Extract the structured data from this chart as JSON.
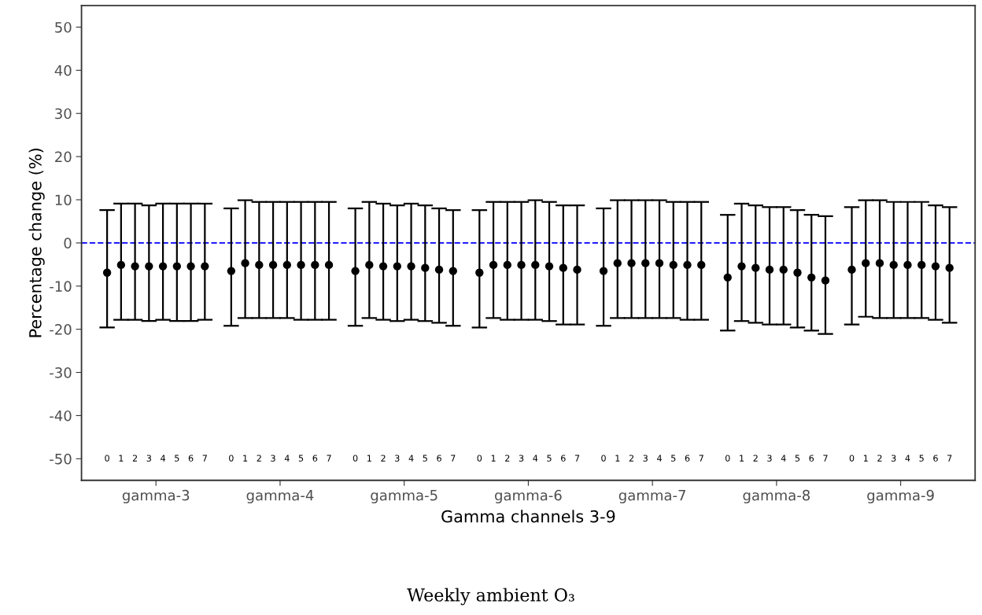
{
  "chart_data": {
    "type": "scatter",
    "xlabel": "Gamma channels 3-9",
    "ylabel": "Percentage change (%)",
    "categories": [
      "gamma-3",
      "gamma-4",
      "gamma-5",
      "gamma-6",
      "gamma-7",
      "gamma-8",
      "gamma-9"
    ],
    "ylim": [
      -55,
      55
    ],
    "yticks": [
      -50,
      -40,
      -30,
      -20,
      -10,
      0,
      10,
      20,
      30,
      40,
      50
    ],
    "grid": false,
    "legend": false,
    "marker": "circle",
    "series": [
      {
        "color": "#000000",
        "values": [
          -6.9,
          -6.5,
          -6.5,
          -6.9,
          -6.5,
          -8.0,
          -6.2
        ],
        "errors": [
          [
            -19.6,
            7.6
          ],
          [
            -19.2,
            8.0
          ],
          [
            -19.2,
            8.0
          ],
          [
            -19.6,
            7.6
          ],
          [
            -19.2,
            8.0
          ],
          [
            -20.3,
            6.5
          ],
          [
            -18.9,
            8.3
          ]
        ]
      },
      {
        "color": "#000000",
        "values": [
          -5.1,
          -4.7,
          -5.1,
          -5.1,
          -4.7,
          -5.4,
          -4.7
        ],
        "errors": [
          [
            -17.8,
            9.1
          ],
          [
            -17.4,
            9.9
          ],
          [
            -17.4,
            9.5
          ],
          [
            -17.4,
            9.5
          ],
          [
            -17.4,
            9.9
          ],
          [
            -18.1,
            9.1
          ],
          [
            -17.1,
            9.9
          ]
        ]
      },
      {
        "color": "#000000",
        "values": [
          -5.4,
          -5.1,
          -5.4,
          -5.1,
          -4.7,
          -5.8,
          -4.7
        ],
        "errors": [
          [
            -17.8,
            9.1
          ],
          [
            -17.4,
            9.5
          ],
          [
            -17.8,
            9.1
          ],
          [
            -17.8,
            9.5
          ],
          [
            -17.4,
            9.9
          ],
          [
            -18.5,
            8.7
          ],
          [
            -17.4,
            9.9
          ]
        ]
      },
      {
        "color": "#000000",
        "values": [
          -5.4,
          -5.1,
          -5.4,
          -5.1,
          -4.7,
          -6.2,
          -5.1
        ],
        "errors": [
          [
            -18.1,
            8.7
          ],
          [
            -17.4,
            9.5
          ],
          [
            -18.1,
            8.7
          ],
          [
            -17.8,
            9.5
          ],
          [
            -17.4,
            9.9
          ],
          [
            -18.9,
            8.3
          ],
          [
            -17.4,
            9.5
          ]
        ]
      },
      {
        "color": "#000000",
        "values": [
          -5.4,
          -5.1,
          -5.4,
          -5.1,
          -4.7,
          -6.2,
          -5.1
        ],
        "errors": [
          [
            -17.8,
            9.1
          ],
          [
            -17.4,
            9.5
          ],
          [
            -17.8,
            9.1
          ],
          [
            -17.8,
            9.9
          ],
          [
            -17.4,
            9.9
          ],
          [
            -18.9,
            8.3
          ],
          [
            -17.4,
            9.5
          ]
        ]
      },
      {
        "color": "#000000",
        "values": [
          -5.4,
          -5.1,
          -5.8,
          -5.4,
          -5.1,
          -6.9,
          -5.1
        ],
        "errors": [
          [
            -18.1,
            9.1
          ],
          [
            -17.8,
            9.5
          ],
          [
            -18.1,
            8.7
          ],
          [
            -18.1,
            9.5
          ],
          [
            -17.4,
            9.5
          ],
          [
            -19.6,
            7.6
          ],
          [
            -17.4,
            9.5
          ]
        ]
      },
      {
        "color": "#000000",
        "values": [
          -5.4,
          -5.1,
          -6.2,
          -5.8,
          -5.1,
          -8.0,
          -5.4
        ],
        "errors": [
          [
            -18.1,
            9.1
          ],
          [
            -17.8,
            9.5
          ],
          [
            -18.5,
            8.0
          ],
          [
            -18.9,
            8.7
          ],
          [
            -17.8,
            9.5
          ],
          [
            -20.3,
            6.5
          ],
          [
            -17.8,
            8.7
          ]
        ]
      },
      {
        "color": "#000000",
        "values": [
          -5.4,
          -5.1,
          -6.5,
          -6.2,
          -5.1,
          -8.7,
          -5.8
        ],
        "errors": [
          [
            -17.8,
            9.1
          ],
          [
            -17.8,
            9.5
          ],
          [
            -19.2,
            7.6
          ],
          [
            -18.9,
            8.7
          ],
          [
            -17.8,
            9.5
          ],
          [
            -21.1,
            6.2
          ],
          [
            -18.5,
            8.3
          ]
        ]
      }
    ],
    "ref_lines": [
      {
        "axis": "y",
        "value": 0,
        "color": "#0000ff",
        "line_style": "dashed"
      }
    ],
    "annotations": [
      "0",
      "1",
      "2",
      "3",
      "4",
      "5",
      "6",
      "7",
      "0",
      "1",
      "2",
      "3",
      "4",
      "5",
      "6",
      "7",
      "0",
      "1",
      "2",
      "3",
      "4",
      "5",
      "6",
      "7",
      "0",
      "1",
      "2",
      "3",
      "4",
      "5",
      "6",
      "7",
      "0",
      "1",
      "2",
      "3",
      "4",
      "5",
      "6",
      "7",
      "0",
      "1",
      "2",
      "3",
      "4",
      "5",
      "6",
      "7",
      "0",
      "1",
      "2",
      "3",
      "4",
      "5",
      "6",
      "7",
      "Weekly ambient O₃"
    ]
  }
}
